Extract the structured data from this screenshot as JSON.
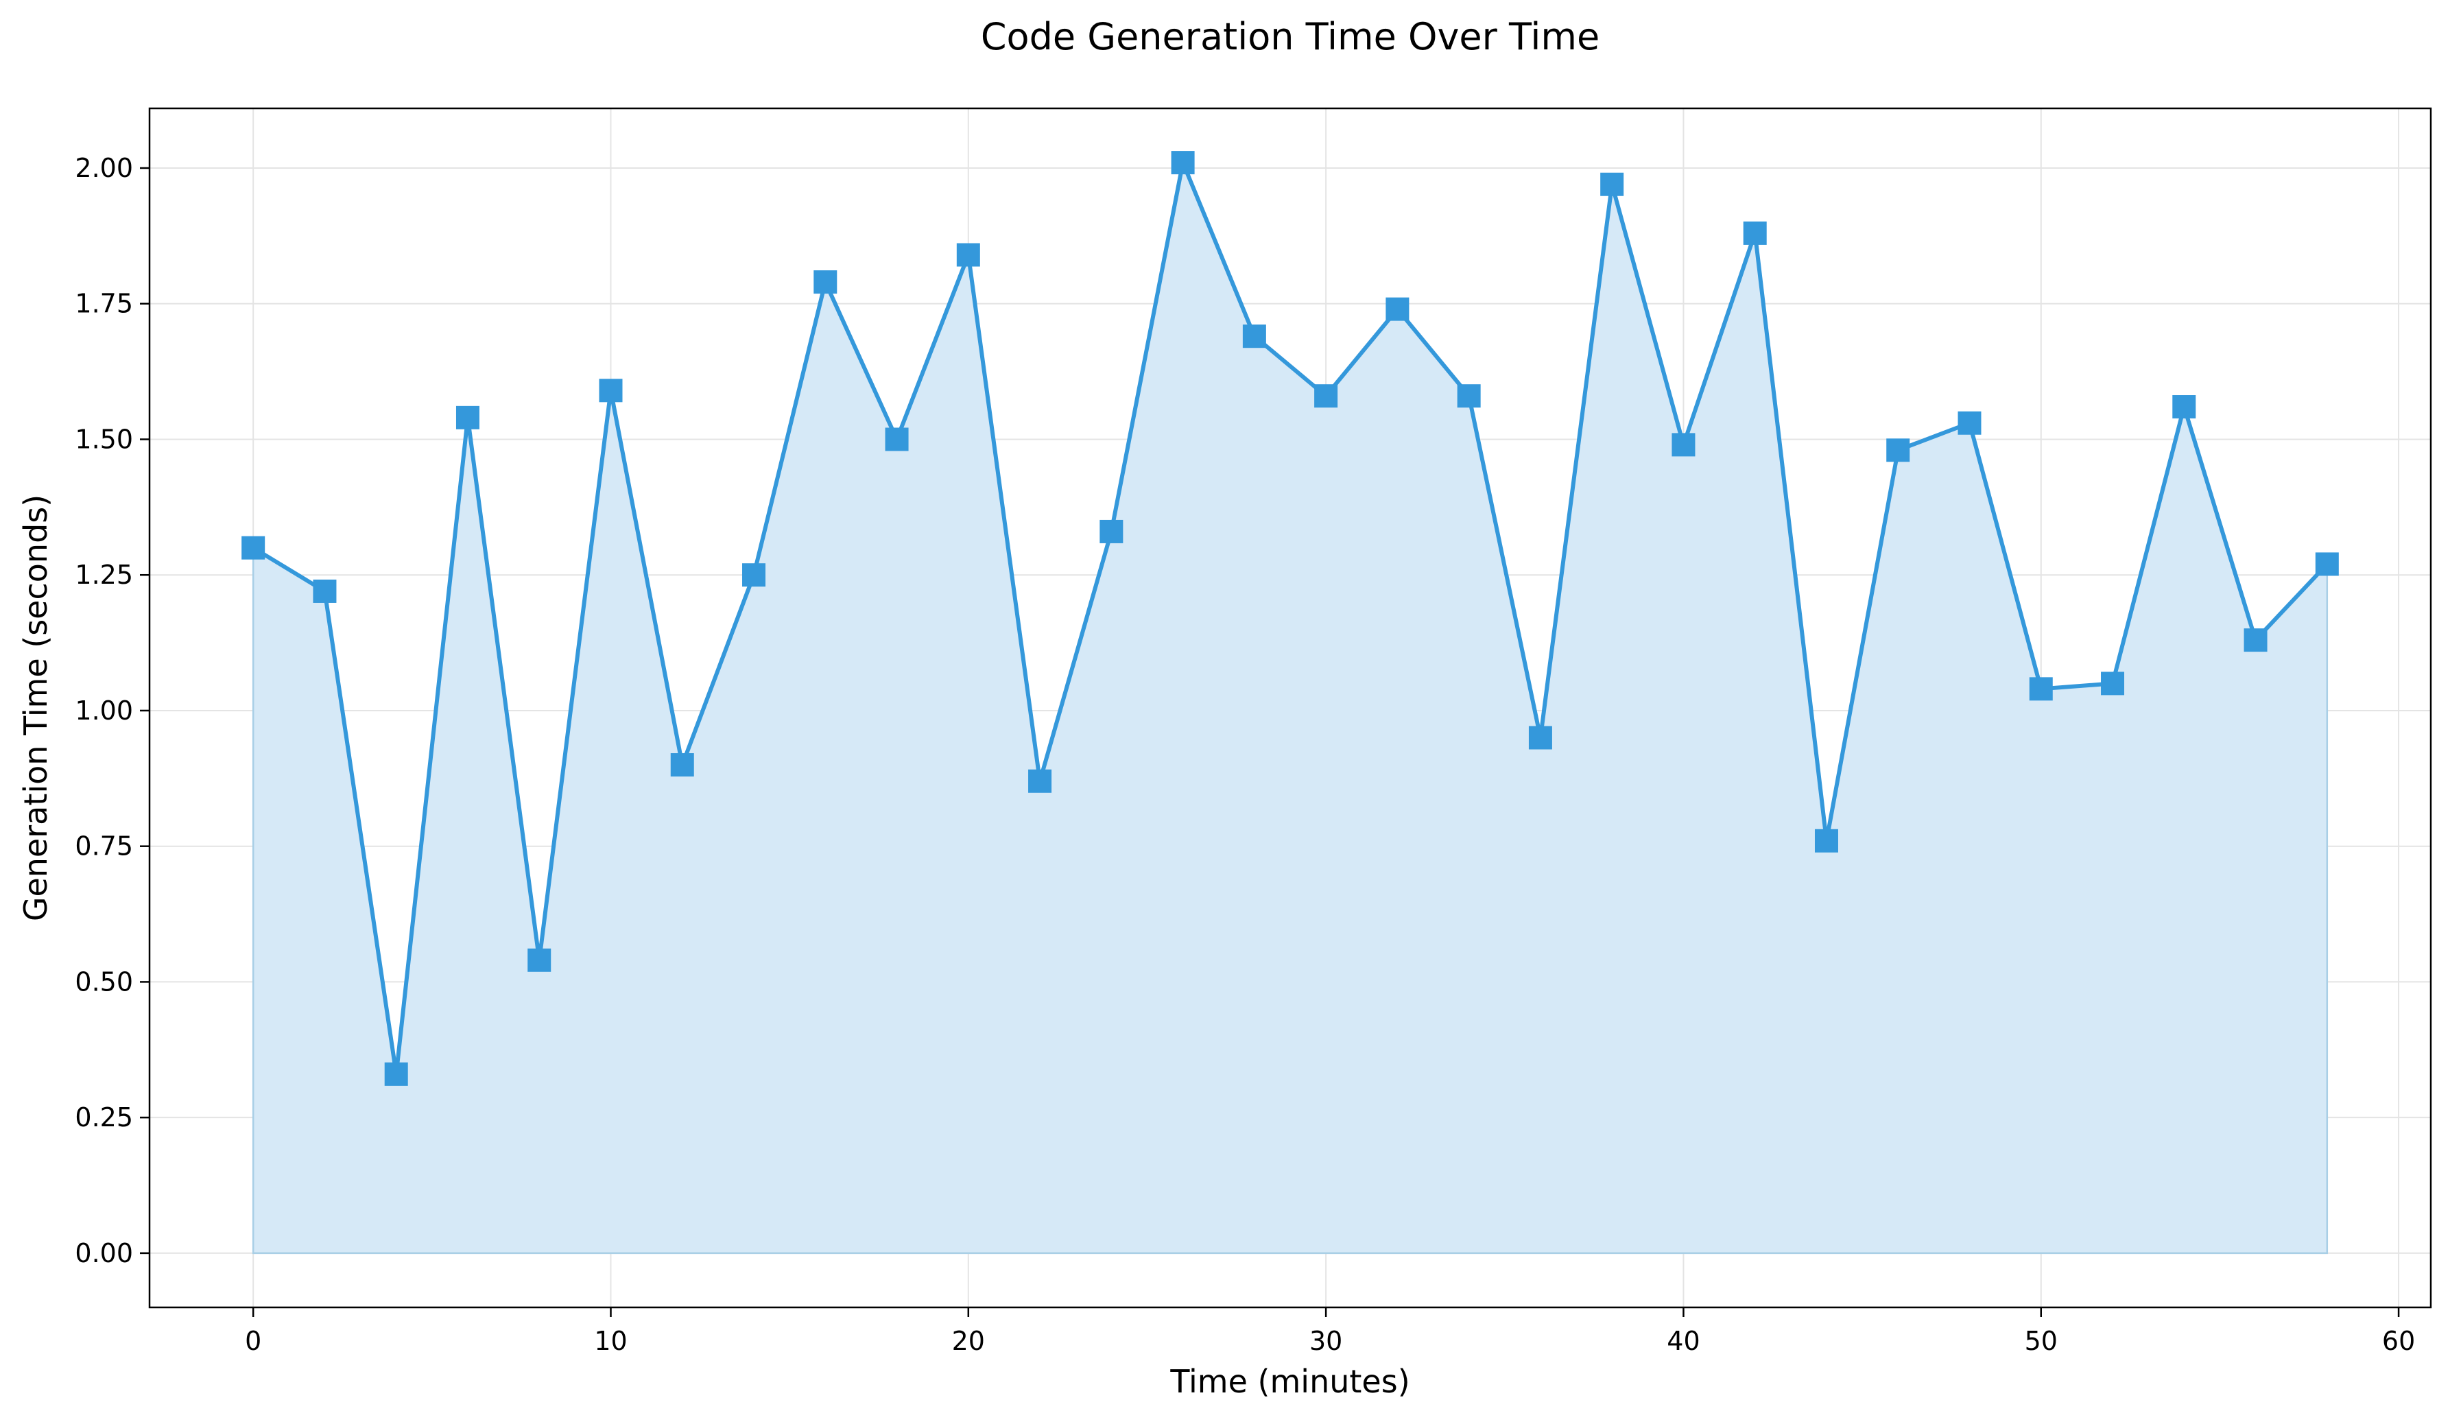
{
  "chart_data": {
    "type": "line",
    "title": "Code Generation Time Over Time",
    "xlabel": "Time (minutes)",
    "ylabel": "Generation Time (seconds)",
    "xlim": [
      -2.9,
      60.9
    ],
    "ylim": [
      -0.1,
      2.11
    ],
    "xticks": [
      0,
      10,
      20,
      30,
      40,
      50,
      60
    ],
    "xtick_labels": [
      "0",
      "10",
      "20",
      "30",
      "40",
      "50",
      "60"
    ],
    "yticks": [
      0,
      0.25,
      0.5,
      0.75,
      1.0,
      1.25,
      1.5,
      1.75,
      2.0
    ],
    "ytick_labels": [
      "0.00",
      "0.25",
      "0.50",
      "0.75",
      "1.00",
      "1.25",
      "1.50",
      "1.75",
      "2.00"
    ],
    "grid": true,
    "area_fill": true,
    "marker": "square",
    "colors": {
      "line": "#3498db",
      "fill": "#d6e9f7",
      "fill_edge": "#a9cfe6",
      "grid": "#e4e4e4"
    },
    "x": [
      0,
      2,
      4,
      6,
      8,
      10,
      12,
      14,
      16,
      18,
      20,
      22,
      24,
      26,
      28,
      30,
      32,
      34,
      36,
      38,
      40,
      42,
      44,
      46,
      48,
      50,
      52,
      54,
      56,
      58
    ],
    "series": [
      {
        "values": [
          1.3,
          1.22,
          0.33,
          1.54,
          0.54,
          1.59,
          0.9,
          1.25,
          1.79,
          1.5,
          1.84,
          0.87,
          1.33,
          2.01,
          1.69,
          1.58,
          1.74,
          1.58,
          0.95,
          1.97,
          1.49,
          1.88,
          0.76,
          1.48,
          1.53,
          1.04,
          1.05,
          1.56,
          1.13,
          1.27
        ]
      }
    ]
  }
}
